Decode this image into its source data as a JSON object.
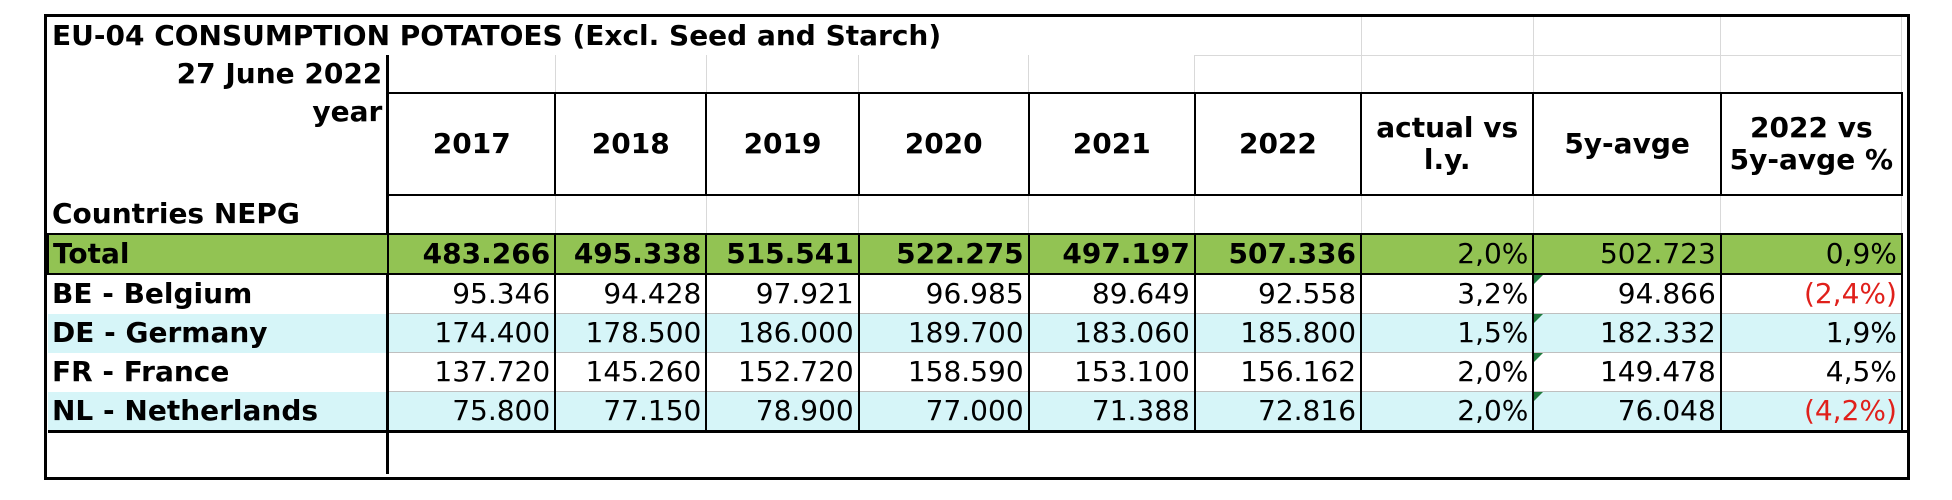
{
  "title": "EU-04 CONSUMPTION POTATOES (Excl. Seed and Starch)",
  "date": "27 June 2022",
  "year_label": "year",
  "countries_label": "Countries NEPG",
  "columns": [
    "2017",
    "2018",
    "2019",
    "2020",
    "2021",
    "2022",
    "actual vs l.y.",
    "5y-avge",
    "2022 vs 5y-avge %"
  ],
  "total": {
    "label": "Total",
    "values": [
      "483.266",
      "495.338",
      "515.541",
      "522.275",
      "497.197",
      "507.336"
    ],
    "actual_vs_ly": "2,0%",
    "avg5": "502.723",
    "vs_avg": "0,9%"
  },
  "rows": [
    {
      "label": "BE - Belgium",
      "values": [
        "95.346",
        "94.428",
        "97.921",
        "96.985",
        "89.649",
        "92.558"
      ],
      "actual_vs_ly": "3,2%",
      "avg5": "94.866",
      "vs_avg": "(2,4%)",
      "negative": true
    },
    {
      "label": "DE - Germany",
      "values": [
        "174.400",
        "178.500",
        "186.000",
        "189.700",
        "183.060",
        "185.800"
      ],
      "actual_vs_ly": "1,5%",
      "avg5": "182.332",
      "vs_avg": "1,9%",
      "negative": false
    },
    {
      "label": "FR - France",
      "values": [
        "137.720",
        "145.260",
        "152.720",
        "158.590",
        "153.100",
        "156.162"
      ],
      "actual_vs_ly": "2,0%",
      "avg5": "149.478",
      "vs_avg": "4,5%",
      "negative": false
    },
    {
      "label": "NL - Netherlands",
      "values": [
        "75.800",
        "77.150",
        "78.900",
        "77.000",
        "71.388",
        "72.816"
      ],
      "actual_vs_ly": "2,0%",
      "avg5": "76.048",
      "vs_avg": "(4,2%)",
      "negative": true
    }
  ]
}
